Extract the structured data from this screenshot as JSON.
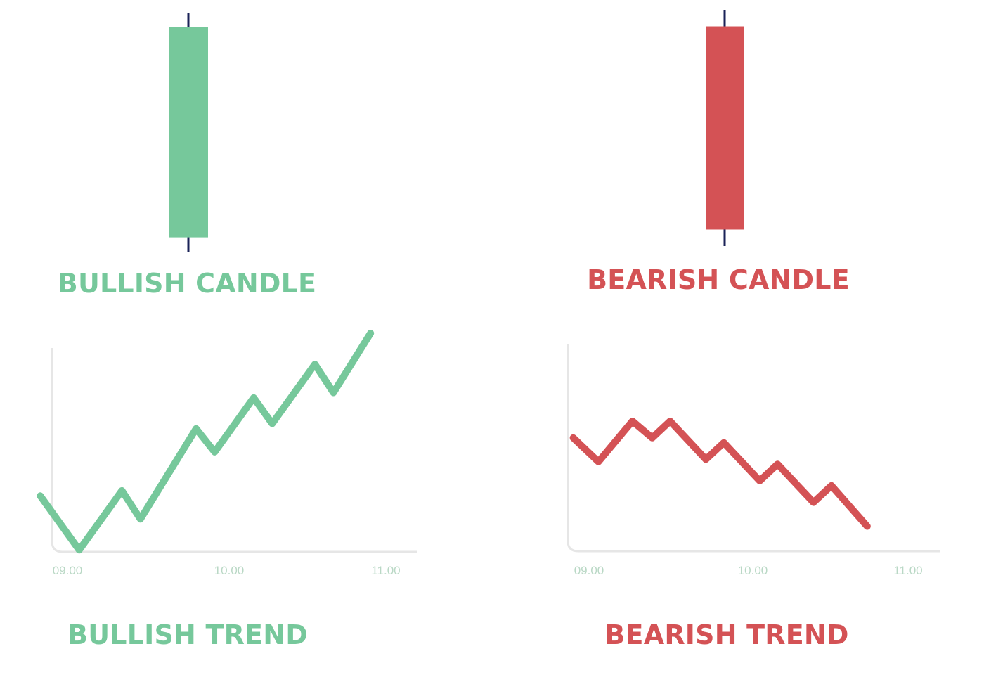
{
  "colors": {
    "bullish": "#76c89b",
    "bearish": "#d45255",
    "wick": "#1a2257",
    "axis": "#e6e6e6",
    "tick_label": "#b9d8c5"
  },
  "chart_data": [
    {
      "type": "candlestick",
      "title": "BULLISH CANDLE",
      "direction": "bullish",
      "ohlc": {
        "open": 0.06,
        "high": 1.0,
        "low": 0.0,
        "close": 0.94
      }
    },
    {
      "type": "candlestick",
      "title": "BEARISH CANDLE",
      "direction": "bearish",
      "ohlc": {
        "open": 0.93,
        "high": 1.0,
        "low": 0.0,
        "close": 0.07
      }
    },
    {
      "type": "line",
      "title": "BULLISH TREND",
      "xlabel": "",
      "ylabel": "",
      "x_ticks": [
        "09.00",
        "10.00",
        "11.00"
      ],
      "xlim": [
        9.0,
        11.0
      ],
      "ylim": [
        0,
        100
      ],
      "grid": false,
      "series": [
        {
          "x": [
            9.02,
            9.23,
            9.46,
            9.56,
            9.86,
            9.96,
            10.17,
            10.27,
            10.5,
            10.6,
            10.8
          ],
          "y": [
            25,
            4,
            27,
            16,
            51,
            42,
            63,
            53,
            76,
            65,
            88
          ]
        }
      ]
    },
    {
      "type": "line",
      "title": "BEARISH TREND",
      "xlabel": "",
      "ylabel": "",
      "x_ticks": [
        "09.00",
        "10.00",
        "11.00"
      ],
      "xlim": [
        9.0,
        11.0
      ],
      "ylim": [
        0,
        100
      ],
      "grid": false,
      "series": [
        {
          "x": [
            9.03,
            9.17,
            9.36,
            9.47,
            9.57,
            9.77,
            9.87,
            10.07,
            10.17,
            10.37,
            10.47,
            10.67
          ],
          "y": [
            48,
            38,
            55,
            48,
            55,
            39,
            46,
            30,
            37,
            21,
            28,
            11
          ]
        }
      ]
    }
  ]
}
